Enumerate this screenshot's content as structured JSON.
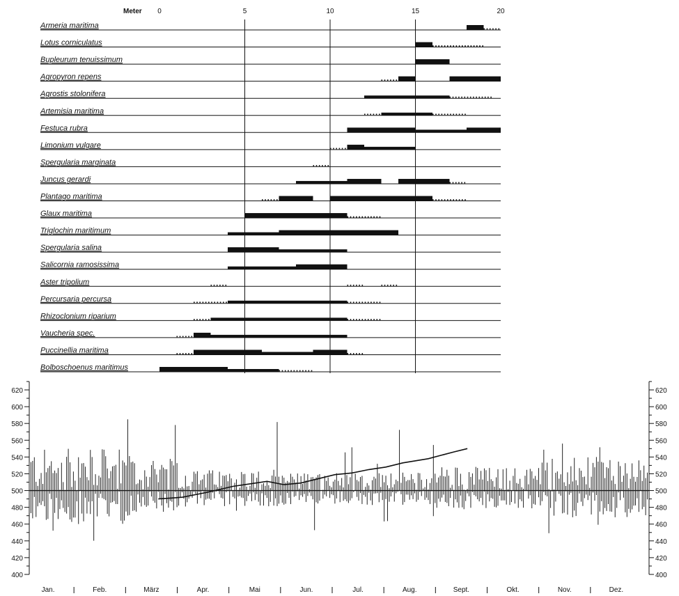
{
  "chart_data": [
    {
      "type": "bar",
      "chart": "species-distribution-transect",
      "xlabel": "Meter",
      "xlim": [
        0,
        20
      ],
      "xticks": [
        "0",
        "5",
        "10",
        "15",
        "20"
      ],
      "species": [
        {
          "name": "Armeria maritima",
          "line": [
            15,
            20
          ],
          "bars": [
            [
              18.0,
              19.0
            ]
          ],
          "dots": [
            [
              19.0,
              20.0
            ]
          ]
        },
        {
          "name": "Lotus corniculatus",
          "line": [
            15,
            20
          ],
          "bars": [
            [
              15.0,
              16.0
            ]
          ],
          "dots": [
            [
              16.0,
              19.0
            ]
          ]
        },
        {
          "name": "Bupleurum tenuissimum",
          "line": [
            15,
            20
          ],
          "bars": [
            [
              15.0,
              17.0
            ]
          ],
          "dots": []
        },
        {
          "name": "Agropyron repens",
          "line": [
            15,
            20
          ],
          "bars": [
            [
              14.0,
              15.0
            ],
            [
              17.0,
              18.0
            ],
            [
              18.0,
              19.0
            ],
            [
              19.0,
              20.0
            ]
          ],
          "dots": [
            [
              13.0,
              14.0
            ]
          ]
        },
        {
          "name": "Agrostis stolonifera",
          "line": [
            15,
            20
          ],
          "bars": [
            [
              12.0,
              17.0
            ]
          ],
          "dots": [
            [
              17.0,
              19.5
            ]
          ]
        },
        {
          "name": "Artemisia maritima",
          "line": [
            15,
            20
          ],
          "bars": [
            [
              13.0,
              16.0
            ]
          ],
          "dots": [
            [
              12.0,
              13.0
            ],
            [
              16.0,
              18.0
            ]
          ]
        },
        {
          "name": "Festuca rubra",
          "line": [
            15,
            20
          ],
          "bars": [
            [
              11.0,
              12.0
            ],
            [
              12.0,
              13.0
            ],
            [
              13.0,
              15.0
            ],
            [
              15.0,
              18.0
            ],
            [
              18.0,
              19.0
            ],
            [
              19.0,
              20.0
            ]
          ],
          "dots": []
        },
        {
          "name": "Limonium vulgare",
          "line": [
            15,
            20
          ],
          "bars": [
            [
              11.0,
              12.0
            ],
            [
              12.0,
              15.0
            ]
          ],
          "dots": [
            [
              10.0,
              11.0
            ]
          ]
        },
        {
          "name": "Spergularia marginata",
          "line": [
            15,
            20
          ],
          "bars": [],
          "dots": [
            [
              9.0,
              10.0
            ]
          ]
        },
        {
          "name": "Juncus gerardi",
          "line": [
            15,
            20
          ],
          "bars": [
            [
              8.0,
              11.0
            ],
            [
              11.0,
              12.0
            ],
            [
              12.0,
              13.0
            ],
            [
              14.0,
              15.0
            ],
            [
              15.0,
              16.0
            ],
            [
              16.0,
              17.0
            ]
          ],
          "dots": [
            [
              17.0,
              18.0
            ]
          ]
        },
        {
          "name": "Plantago maritima",
          "line": [
            15,
            20
          ],
          "bars": [
            [
              7.0,
              8.0
            ],
            [
              8.0,
              9.0
            ],
            [
              10.0,
              11.0
            ],
            [
              11.0,
              12.0
            ],
            [
              12.0,
              14.0
            ],
            [
              14.0,
              16.0
            ]
          ],
          "dots": [
            [
              6.0,
              7.0
            ],
            [
              16.0,
              18.0
            ]
          ]
        },
        {
          "name": "Glaux maritima",
          "line": [
            15,
            20
          ],
          "bars": [
            [
              5.0,
              6.0
            ],
            [
              6.0,
              7.0
            ],
            [
              7.0,
              8.0
            ],
            [
              8.0,
              9.0
            ],
            [
              9.0,
              10.0
            ],
            [
              10.0,
              11.0
            ]
          ],
          "dots": [
            [
              11.0,
              13.0
            ]
          ]
        },
        {
          "name": "Triglochin maritimum",
          "line": [
            15,
            20
          ],
          "bars": [
            [
              4.0,
              7.0
            ],
            [
              7.0,
              8.0
            ],
            [
              8.0,
              10.0
            ],
            [
              10.0,
              11.0
            ],
            [
              11.0,
              12.0
            ],
            [
              12.0,
              14.0
            ]
          ],
          "dots": []
        },
        {
          "name": "Spergularia salina",
          "line": [
            15,
            20
          ],
          "bars": [
            [
              4.0,
              5.0
            ],
            [
              5.0,
              7.0
            ],
            [
              7.0,
              11.0
            ]
          ],
          "dots": []
        },
        {
          "name": "Salicornia ramosissima",
          "line": [
            15,
            20
          ],
          "bars": [
            [
              4.0,
              8.0
            ],
            [
              8.0,
              9.0
            ],
            [
              9.0,
              11.0
            ]
          ],
          "dots": []
        },
        {
          "name": "Aster tripolium",
          "line": [
            15,
            20
          ],
          "bars": [],
          "dots": [
            [
              3.0,
              4.0
            ],
            [
              11.0,
              12.0
            ],
            [
              13.0,
              14.0
            ]
          ]
        },
        {
          "name": "Percursaria percursa",
          "line": [
            15,
            20
          ],
          "bars": [
            [
              4.0,
              11.0
            ]
          ],
          "dots": [
            [
              2.0,
              4.0
            ],
            [
              11.0,
              13.0
            ]
          ]
        },
        {
          "name": "Rhizoclonium riparium",
          "line": [
            15,
            20
          ],
          "bars": [
            [
              3.0,
              11.0
            ]
          ],
          "dots": [
            [
              2.0,
              3.0
            ],
            [
              11.0,
              13.0
            ]
          ]
        },
        {
          "name": "Vaucheria spec.",
          "line": [
            15,
            20
          ],
          "bars": [
            [
              2.0,
              3.0
            ],
            [
              3.0,
              7.0
            ],
            [
              7.0,
              11.0
            ]
          ],
          "dots": [
            [
              1.0,
              2.0
            ]
          ]
        },
        {
          "name": "Puccinellia maritima",
          "line": [
            15,
            20
          ],
          "bars": [
            [
              2.0,
              4.0
            ],
            [
              4.0,
              5.0
            ],
            [
              5.0,
              6.0
            ],
            [
              6.0,
              9.0
            ],
            [
              9.0,
              10.0
            ],
            [
              10.0,
              11.0
            ]
          ],
          "dots": [
            [
              1.0,
              2.0
            ],
            [
              11.0,
              12.0
            ]
          ]
        },
        {
          "name": "Bolboschoenus maritimus",
          "line": [
            15,
            20
          ],
          "bars": [
            [
              0.0,
              2.0
            ],
            [
              2.0,
              4.0
            ],
            [
              4.0,
              7.0
            ]
          ],
          "dots": [
            [
              7.0,
              9.0
            ]
          ]
        }
      ]
    },
    {
      "type": "line",
      "chart": "daily-water-level",
      "ylim": [
        400,
        630
      ],
      "yticks": [
        400,
        420,
        440,
        460,
        480,
        500,
        520,
        540,
        560,
        580,
        600,
        620
      ],
      "baseline": 500,
      "months": [
        "Jan.",
        "Feb.",
        "März",
        "Apr.",
        "Mai",
        "Jun.",
        "Jul.",
        "Aug.",
        "Sept.",
        "Okt.",
        "Nov.",
        "Dez."
      ],
      "days": 365,
      "trend": {
        "x": [
          76,
          90,
          105,
          120,
          130,
          140,
          150,
          160,
          170,
          180,
          190,
          200,
          210,
          220,
          235,
          250,
          258
        ],
        "y": [
          490,
          492,
          498,
          505,
          508,
          511,
          507,
          509,
          514,
          519,
          521,
          525,
          528,
          533,
          538,
          546,
          550
        ]
      }
    }
  ]
}
